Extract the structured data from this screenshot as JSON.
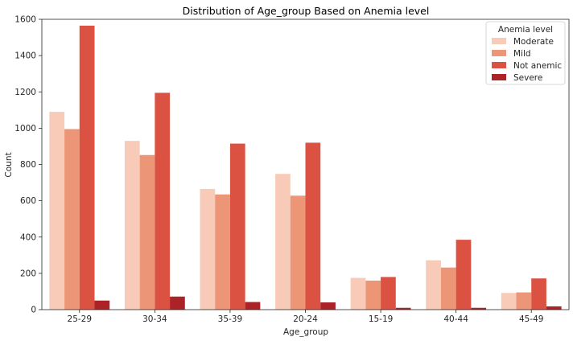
{
  "chart_data": {
    "type": "bar",
    "title": "Distribution of Age_group Based on Anemia level",
    "xlabel": "Age_group",
    "ylabel": "Count",
    "ylim": [
      0,
      1600
    ],
    "yticks": [
      0,
      200,
      400,
      600,
      800,
      1000,
      1200,
      1400,
      1600
    ],
    "grid": false,
    "categories": [
      "25-29",
      "30-34",
      "35-39",
      "20-24",
      "15-19",
      "40-44",
      "45-49"
    ],
    "legend": {
      "title": "Anemia level",
      "placement": "top-right"
    },
    "series": [
      {
        "name": "Moderate",
        "color": "#f7cbb8",
        "values": [
          1090,
          930,
          665,
          748,
          175,
          272,
          92
        ]
      },
      {
        "name": "Mild",
        "color": "#ec9677",
        "values": [
          995,
          852,
          635,
          628,
          160,
          232,
          95
        ]
      },
      {
        "name": "Not anemic",
        "color": "#dc5242",
        "values": [
          1565,
          1195,
          915,
          920,
          180,
          385,
          172
        ]
      },
      {
        "name": "Severe",
        "color": "#ab2227",
        "values": [
          50,
          72,
          42,
          40,
          10,
          10,
          18
        ]
      }
    ]
  }
}
